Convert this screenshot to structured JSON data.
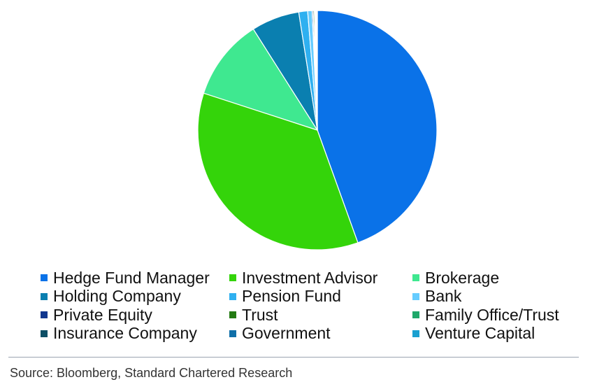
{
  "chart_data": {
    "type": "pie",
    "title": "",
    "series": [
      {
        "name": "Hedge Fund Manager",
        "value": 44.5,
        "color": "#0a72e8"
      },
      {
        "name": "Investment Advisor",
        "value": 35.5,
        "color": "#34d40a"
      },
      {
        "name": "Brokerage",
        "value": 11.0,
        "color": "#3fe890"
      },
      {
        "name": "Holding Company",
        "value": 6.5,
        "color": "#0a7fb0"
      },
      {
        "name": "Pension Fund",
        "value": 1.2,
        "color": "#2fb0f0"
      },
      {
        "name": "Bank",
        "value": 0.6,
        "color": "#66ccff"
      },
      {
        "name": "Private Equity",
        "value": 0.15,
        "color": "#10378e"
      },
      {
        "name": "Trust",
        "value": 0.15,
        "color": "#237a12"
      },
      {
        "name": "Family Office/Trust",
        "value": 0.1,
        "color": "#1fa86a"
      },
      {
        "name": "Insurance Company",
        "value": 0.1,
        "color": "#0d4f66"
      },
      {
        "name": "Government",
        "value": 0.1,
        "color": "#0f6fa8"
      },
      {
        "name": "Venture Capital",
        "value": 0.1,
        "color": "#1aa0d0"
      }
    ],
    "legend_placement": "bottom"
  },
  "source": "Source: Bloomberg, Standard Chartered Research"
}
